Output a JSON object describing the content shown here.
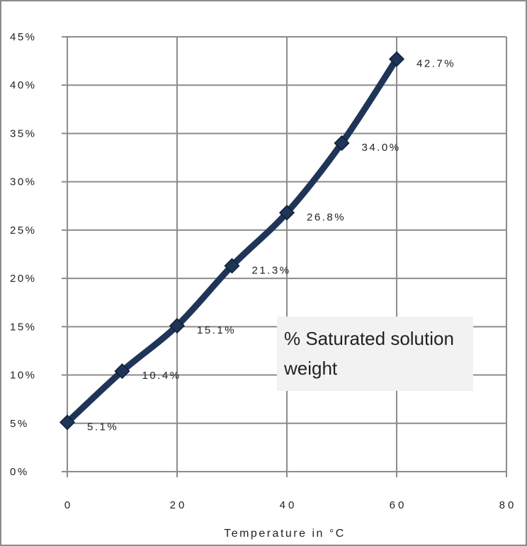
{
  "chart_data": {
    "type": "line",
    "title": "",
    "xlabel": "Temperature in °C",
    "ylabel": "",
    "x": [
      0,
      10,
      20,
      30,
      40,
      50,
      60
    ],
    "series": [
      {
        "name": "% Saturated solution weight",
        "values": [
          5.1,
          10.4,
          15.1,
          21.3,
          26.8,
          34.0,
          42.7
        ],
        "labels": [
          "5.1%",
          "10.4%",
          "15.1%",
          "21.3%",
          "26.8%",
          "34.0%",
          "42.7%"
        ]
      }
    ],
    "xlim": [
      0,
      80
    ],
    "ylim": [
      0,
      45
    ],
    "xticks": [
      0,
      20,
      40,
      60,
      80
    ],
    "xtick_labels": [
      "0",
      "20",
      "40",
      "60",
      "80"
    ],
    "yticks": [
      0,
      5,
      10,
      15,
      20,
      25,
      30,
      35,
      40,
      45
    ],
    "ytick_labels": [
      "0%",
      "5%",
      "10%",
      "15%",
      "20%",
      "25%",
      "30%",
      "35%",
      "40%",
      "45%"
    ],
    "grid": true,
    "legend": {
      "placement": "inside-lower-right",
      "entry": "% Saturated solution weight"
    },
    "colors": {
      "line": "#1f3558",
      "marker": "#1f3558",
      "grid": "#8c8c8c",
      "legend_bg": "#f2f2f2"
    }
  }
}
